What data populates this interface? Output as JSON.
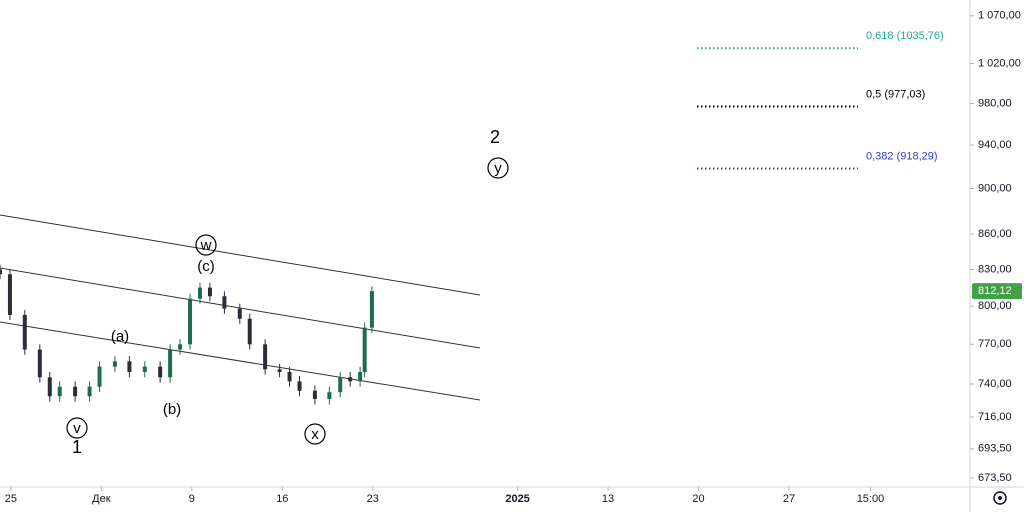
{
  "chart_data": {
    "type": "candlestick",
    "x": [
      -0.6,
      -0.05,
      0.77,
      1.6,
      2.15,
      2.7,
      3.55,
      4.35,
      4.9,
      5.75,
      6.55,
      7.4,
      8.25,
      8.8,
      9.35,
      9.9,
      10.45,
      11.0,
      11.8,
      12.65,
      13.2,
      14.05,
      14.85,
      15.4,
      15.95,
      16.8,
      17.6,
      18.2,
      18.75,
      19.3,
      19.55,
      19.95
    ],
    "open": [
      830,
      826,
      793,
      766,
      745,
      731,
      738,
      731,
      738,
      753,
      757,
      749,
      753,
      745,
      766,
      770,
      806,
      815,
      808,
      798,
      790,
      770,
      751,
      749,
      742,
      735,
      729,
      734,
      745,
      742,
      749,
      783
    ],
    "high": [
      834,
      830,
      797,
      770,
      749,
      742,
      742,
      742,
      757,
      761,
      761,
      757,
      757,
      770,
      774,
      810,
      819,
      819,
      812,
      802,
      794,
      774,
      755,
      753,
      746,
      739,
      738,
      749,
      749,
      753,
      787,
      816
    ],
    "low": [
      822,
      789,
      762,
      741,
      727,
      727,
      727,
      727,
      734,
      749,
      745,
      745,
      741,
      741,
      762,
      766,
      802,
      804,
      794,
      786,
      766,
      747,
      745,
      738,
      731,
      725,
      725,
      730,
      738,
      738,
      745,
      779
    ],
    "close": [
      826,
      793,
      766,
      745,
      731,
      738,
      731,
      738,
      753,
      757,
      749,
      753,
      745,
      766,
      770,
      806,
      815,
      808,
      798,
      790,
      770,
      751,
      749,
      742,
      735,
      729,
      734,
      745,
      742,
      749,
      783,
      812.12
    ],
    "up_color": "#1e6b50",
    "down_color": "#2a2e39",
    "log_scale": true,
    "ylim": [
      667.5,
      1087
    ],
    "yticks": [
      {
        "value": 1070,
        "label": "1 070,00"
      },
      {
        "value": 1020,
        "label": "1 020,00"
      },
      {
        "value": 980,
        "label": "980,00"
      },
      {
        "value": 940,
        "label": "940,00"
      },
      {
        "value": 900,
        "label": "900,00"
      },
      {
        "value": 860,
        "label": "860,00"
      },
      {
        "value": 830,
        "label": "830,00"
      },
      {
        "value": 800,
        "label": "800,00"
      },
      {
        "value": 770,
        "label": "770,00"
      },
      {
        "value": 740,
        "label": "740,00"
      },
      {
        "value": 716,
        "label": "716,00"
      },
      {
        "value": 693.5,
        "label": "693,50"
      },
      {
        "value": 673.5,
        "label": "673,50"
      }
    ],
    "xlim": [
      -0.6,
      53
    ],
    "xticks": [
      {
        "value": 0,
        "label": "25"
      },
      {
        "value": 5,
        "label": "Дек"
      },
      {
        "value": 10,
        "label": "9"
      },
      {
        "value": 15,
        "label": "16"
      },
      {
        "value": 20,
        "label": "23"
      },
      {
        "value": 28,
        "label": "2025"
      },
      {
        "value": 33,
        "label": "13"
      },
      {
        "value": 38,
        "label": "20"
      },
      {
        "value": 43,
        "label": "27"
      },
      {
        "value": 47.5,
        "label": "15:00"
      }
    ],
    "last_price": {
      "value": 812.12,
      "label": "812,12",
      "color": "#43a047"
    },
    "fib_levels": [
      {
        "label": "0,618 (1035,76)",
        "price": 1035.76,
        "color": "#22ab94"
      },
      {
        "label": "0,5 (977,03)",
        "price": 977.03,
        "color": "#000000"
      },
      {
        "label": "0,382 (918,29)",
        "price": 918.29,
        "color": "#2f3ccf"
      }
    ],
    "annotations": [
      "w",
      "(c)",
      "(a)",
      "(b)",
      "v",
      "1",
      "x",
      "2",
      "y"
    ]
  }
}
